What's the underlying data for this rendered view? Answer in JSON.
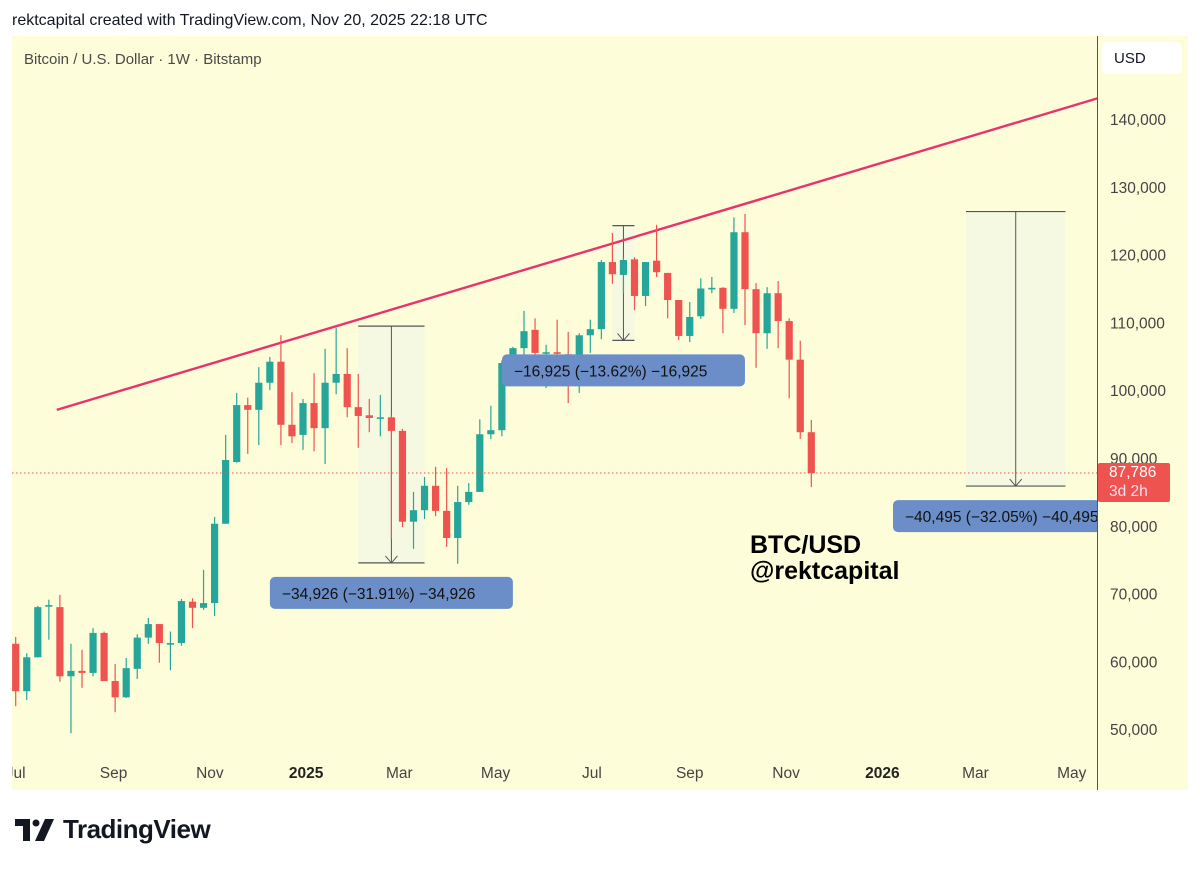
{
  "header": {
    "credit": "rektcapital created with TradingView.com, Nov 20, 2025 22:18 UTC"
  },
  "footer": {
    "brand": "TradingView"
  },
  "currency_button": "USD",
  "watermark": {
    "line1": "BTC/USD",
    "line2": "@rektcapital"
  },
  "colors": {
    "background": "#fefdd9",
    "up": "#26a69a",
    "down": "#ef5350",
    "trendline": "#e8336b",
    "measure_label": "#6b8ec8",
    "measure_box": "#f3f8e2"
  },
  "chart_data": {
    "type": "candlestick",
    "title": "Bitcoin / U.S. Dollar · 1W · Bitstamp",
    "ylim": [
      45000,
      148000
    ],
    "y_ticks": [
      50000,
      60000,
      70000,
      80000,
      90000,
      100000,
      110000,
      120000,
      130000,
      140000
    ],
    "y_tick_labels": [
      "50,000",
      "60,000",
      "70,000",
      "80,000",
      "90,000",
      "100,000",
      "110,000",
      "120,000",
      "130,000",
      "140,000"
    ],
    "x_ticks": [
      {
        "date": "2024-07-01",
        "label": "Jul",
        "bold": false
      },
      {
        "date": "2024-09-01",
        "label": "Sep",
        "bold": false
      },
      {
        "date": "2024-11-01",
        "label": "Nov",
        "bold": false
      },
      {
        "date": "2025-01-01",
        "label": "2025",
        "bold": true
      },
      {
        "date": "2025-03-01",
        "label": "Mar",
        "bold": false
      },
      {
        "date": "2025-05-01",
        "label": "May",
        "bold": false
      },
      {
        "date": "2025-07-01",
        "label": "Jul",
        "bold": false
      },
      {
        "date": "2025-09-01",
        "label": "Sep",
        "bold": false
      },
      {
        "date": "2025-11-01",
        "label": "Nov",
        "bold": false
      },
      {
        "date": "2026-01-01",
        "label": "2026",
        "bold": true
      },
      {
        "date": "2026-03-01",
        "label": "Mar",
        "bold": false
      },
      {
        "date": "2026-05-01",
        "label": "May",
        "bold": false
      }
    ],
    "candles_fields": [
      "date",
      "open",
      "high",
      "low",
      "close"
    ],
    "candles": [
      [
        "2024-07-01",
        62600,
        63600,
        53400,
        55600
      ],
      [
        "2024-07-08",
        55600,
        61200,
        54300,
        60600
      ],
      [
        "2024-07-15",
        60600,
        68200,
        60600,
        68000
      ],
      [
        "2024-07-22",
        68300,
        69100,
        63200,
        68300
      ],
      [
        "2024-07-29",
        68000,
        69800,
        57000,
        57800
      ],
      [
        "2024-08-05",
        57800,
        62600,
        49400,
        58600
      ],
      [
        "2024-08-12",
        58600,
        61700,
        56100,
        58300
      ],
      [
        "2024-08-19",
        58300,
        64900,
        57800,
        64200
      ],
      [
        "2024-08-26",
        64200,
        64400,
        57100,
        57100
      ],
      [
        "2024-09-02",
        57100,
        59600,
        52500,
        54700
      ],
      [
        "2024-09-09",
        54700,
        60500,
        54600,
        59000
      ],
      [
        "2024-09-16",
        58900,
        64000,
        57400,
        63500
      ],
      [
        "2024-09-23",
        63500,
        66400,
        62600,
        65500
      ],
      [
        "2024-09-30",
        65500,
        65500,
        59800,
        62700
      ],
      [
        "2024-10-07",
        62700,
        64400,
        58700,
        62700
      ],
      [
        "2024-10-14",
        62700,
        69200,
        62300,
        68900
      ],
      [
        "2024-10-21",
        68800,
        69300,
        64900,
        67900
      ],
      [
        "2024-10-28",
        67900,
        73500,
        67600,
        68600
      ],
      [
        "2024-11-04",
        68600,
        81300,
        66700,
        80300
      ],
      [
        "2024-11-11",
        80300,
        93400,
        80300,
        89700
      ],
      [
        "2024-11-18",
        89400,
        99600,
        89300,
        97800
      ],
      [
        "2024-11-25",
        97800,
        98900,
        90600,
        97100
      ],
      [
        "2024-12-02",
        97100,
        103400,
        91900,
        101100
      ],
      [
        "2024-12-09",
        101100,
        104900,
        100000,
        104200
      ],
      [
        "2024-12-16",
        104200,
        108100,
        91900,
        94900
      ],
      [
        "2024-12-23",
        94900,
        99700,
        92200,
        93200
      ],
      [
        "2024-12-30",
        93400,
        98700,
        91200,
        98100
      ],
      [
        "2025-01-06",
        98100,
        102500,
        91000,
        94400
      ],
      [
        "2025-01-13",
        94400,
        106100,
        89100,
        101100
      ],
      [
        "2025-01-20",
        101100,
        109200,
        99400,
        102400
      ],
      [
        "2025-01-27",
        102400,
        106200,
        96000,
        97500
      ],
      [
        "2025-02-03",
        97500,
        102400,
        91500,
        96200
      ],
      [
        "2025-02-10",
        96300,
        98700,
        93800,
        95900
      ],
      [
        "2025-02-17",
        96000,
        99300,
        93200,
        96000
      ],
      [
        "2025-02-24",
        96000,
        96300,
        78100,
        94000
      ],
      [
        "2025-03-03",
        94000,
        94300,
        79800,
        80600
      ],
      [
        "2025-03-10",
        80600,
        85000,
        76600,
        82300
      ],
      [
        "2025-03-17",
        82300,
        87200,
        81000,
        85900
      ],
      [
        "2025-03-24",
        85900,
        88700,
        81400,
        82200
      ],
      [
        "2025-03-31",
        82200,
        88500,
        76900,
        78200
      ],
      [
        "2025-04-07",
        78200,
        85900,
        74400,
        83500
      ],
      [
        "2025-04-14",
        83500,
        86300,
        83100,
        85000
      ],
      [
        "2025-04-21",
        85000,
        95700,
        85000,
        93500
      ],
      [
        "2025-04-28",
        93500,
        97700,
        92800,
        94100
      ],
      [
        "2025-05-05",
        94100,
        104400,
        93200,
        104000
      ],
      [
        "2025-05-12",
        104000,
        106400,
        101100,
        106200
      ],
      [
        "2025-05-19",
        106200,
        111700,
        103400,
        108700
      ],
      [
        "2025-05-26",
        108900,
        110600,
        104400,
        105500
      ],
      [
        "2025-06-02",
        105600,
        106700,
        100300,
        105600
      ],
      [
        "2025-06-09",
        105600,
        110400,
        100800,
        105500
      ],
      [
        "2025-06-16",
        105300,
        108600,
        98100,
        100800
      ],
      [
        "2025-06-23",
        100800,
        108400,
        99600,
        108100
      ],
      [
        "2025-06-30",
        108100,
        110400,
        105500,
        109000
      ],
      [
        "2025-07-07",
        109000,
        119200,
        107500,
        118900
      ],
      [
        "2025-07-14",
        118900,
        123200,
        115700,
        117100
      ],
      [
        "2025-07-21",
        117000,
        119600,
        114300,
        119200
      ],
      [
        "2025-07-28",
        119300,
        119600,
        111800,
        113900
      ],
      [
        "2025-08-04",
        113900,
        118900,
        112400,
        118900
      ],
      [
        "2025-08-11",
        119100,
        124400,
        116700,
        117400
      ],
      [
        "2025-08-18",
        117300,
        117300,
        110600,
        113300
      ],
      [
        "2025-08-25",
        113300,
        113300,
        107400,
        108000
      ],
      [
        "2025-09-01",
        108000,
        113000,
        107100,
        110800
      ],
      [
        "2025-09-08",
        110900,
        116500,
        110500,
        115000
      ],
      [
        "2025-09-15",
        115100,
        116700,
        114300,
        115100
      ],
      [
        "2025-09-22",
        115100,
        115200,
        108400,
        112000
      ],
      [
        "2025-09-29",
        112000,
        125500,
        111400,
        123300
      ],
      [
        "2025-10-06",
        123300,
        126000,
        109600,
        114900
      ],
      [
        "2025-10-13",
        114900,
        115800,
        103300,
        108400
      ],
      [
        "2025-10-20",
        108400,
        115200,
        106100,
        114300
      ],
      [
        "2025-10-27",
        114300,
        116100,
        106200,
        110200
      ],
      [
        "2025-11-03",
        110200,
        110600,
        98800,
        104500
      ],
      [
        "2025-11-10",
        104500,
        107300,
        92800,
        93800
      ],
      [
        "2025-11-17",
        93800,
        95600,
        85700,
        87786
      ]
    ],
    "last_price": {
      "value": 87786,
      "label": "87,786",
      "countdown": "3d 2h"
    },
    "trendline": [
      {
        "date": "2024-07-27",
        "price": 97100
      },
      {
        "date": "2026-05-18",
        "price": 143100
      }
    ],
    "measurements": [
      {
        "start": "2025-02-03",
        "end": "2025-03-17",
        "from": 109451,
        "to": 74525,
        "label": "−34,926 (−31.91%) −34,926"
      },
      {
        "start": "2025-07-14",
        "end": "2025-07-28",
        "from": 124270,
        "to": 107345,
        "label": "−16,925 (−13.62%) −16,925"
      },
      {
        "start": "2026-02-23",
        "end": "2026-04-27",
        "from": 126350,
        "to": 85855,
        "label": "−40,495 (−32.05%) −40,495"
      }
    ]
  }
}
